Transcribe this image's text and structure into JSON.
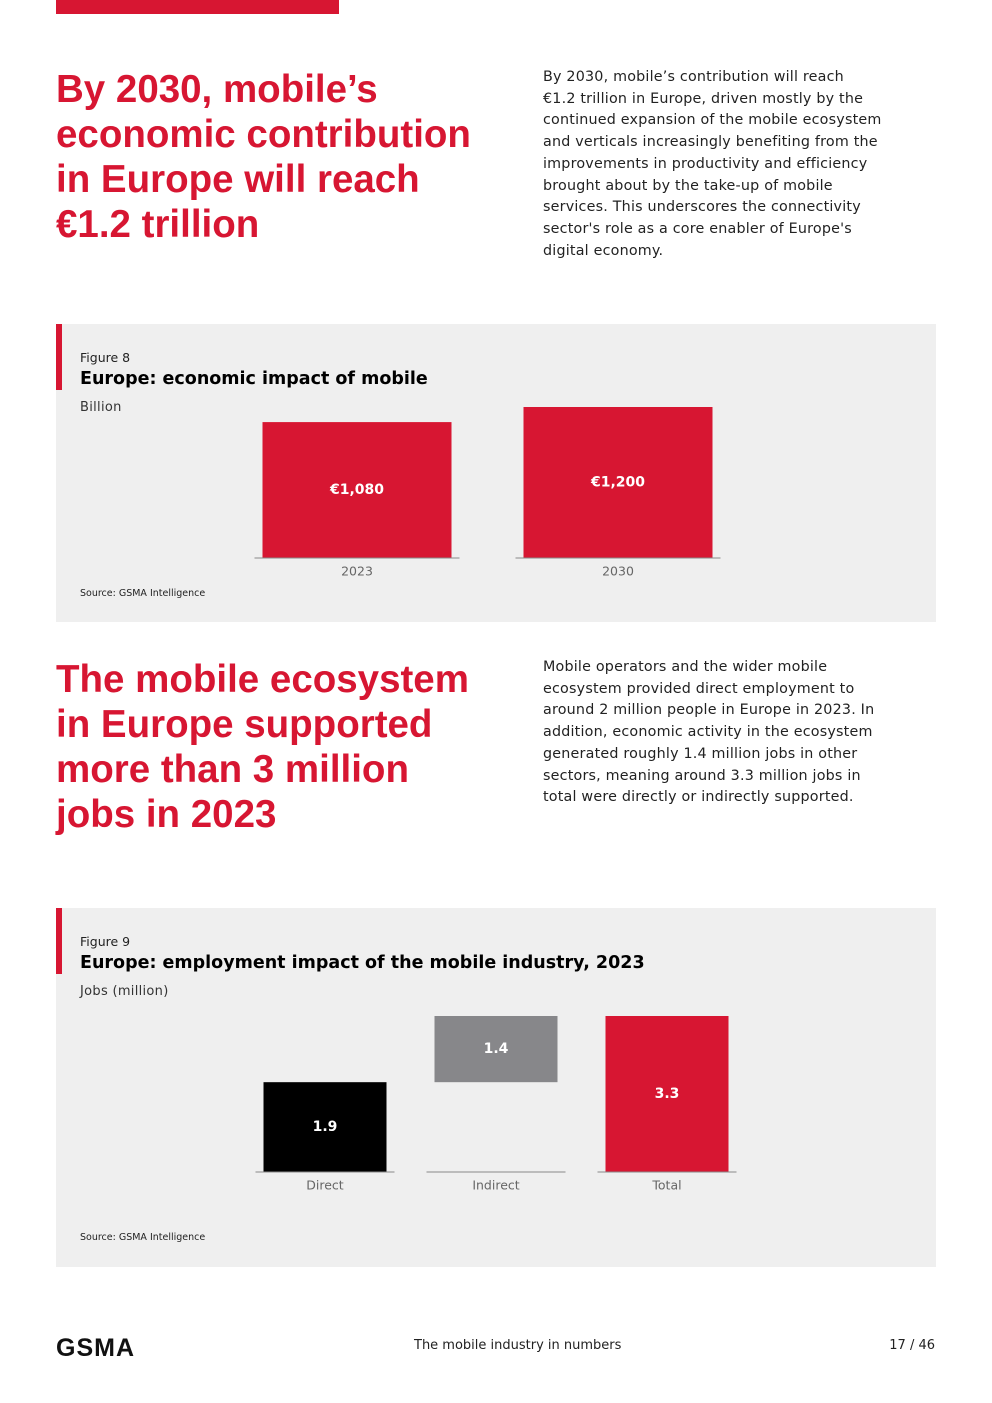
{
  "sections": [
    {
      "heading": [
        "By 2030, mobile’s",
        "economic contribution",
        "in Europe will reach",
        "€1.2 trillion"
      ],
      "body": [
        "By 2030, mobile’s contribution will reach",
        "€1.2 trillion in Europe, driven mostly by the",
        "continued expansion of the mobile ecosystem",
        "and verticals increasingly benefiting from the",
        "improvements in productivity and efficiency",
        "brought about by the take-up of mobile",
        "services. This underscores the connectivity",
        "sector's role as a core enabler of Europe's",
        "digital economy."
      ]
    },
    {
      "heading": [
        "The mobile ecosystem",
        "in Europe supported",
        "more than 3 million",
        "jobs in 2023"
      ],
      "body": [
        "Mobile operators and the wider mobile",
        "ecosystem provided direct employment to",
        "around 2 million people in Europe in 2023. In",
        "addition, economic activity in the ecosystem",
        "generated roughly 1.4 million jobs in other",
        "sectors, meaning around 3.3 million jobs in",
        "total were directly or indirectly supported."
      ]
    }
  ],
  "chart_data": [
    {
      "type": "bar",
      "figure_label": "Figure 8",
      "title": "Europe: economic impact of mobile",
      "unit": "Billion",
      "categories": [
        "2023",
        "2030"
      ],
      "values": [
        1080,
        1200
      ],
      "value_labels": [
        "€1,080",
        "€1,200"
      ],
      "color": "#d71632",
      "source": "Source: GSMA Intelligence"
    },
    {
      "type": "waterfall",
      "figure_label": "Figure 9",
      "title": "Europe: employment impact of the mobile industry, 2023",
      "unit": "Jobs (million)",
      "categories": [
        "Direct",
        "Indirect",
        "Total"
      ],
      "values": [
        1.9,
        1.4,
        3.3
      ],
      "is_total": [
        false,
        false,
        true
      ],
      "colors": [
        "#000000",
        "#87878a",
        "#d71632"
      ],
      "source": "Source: GSMA Intelligence"
    }
  ],
  "footer": {
    "logo": "GSMA",
    "title": "The mobile industry in numbers",
    "page": "17 / 46"
  }
}
